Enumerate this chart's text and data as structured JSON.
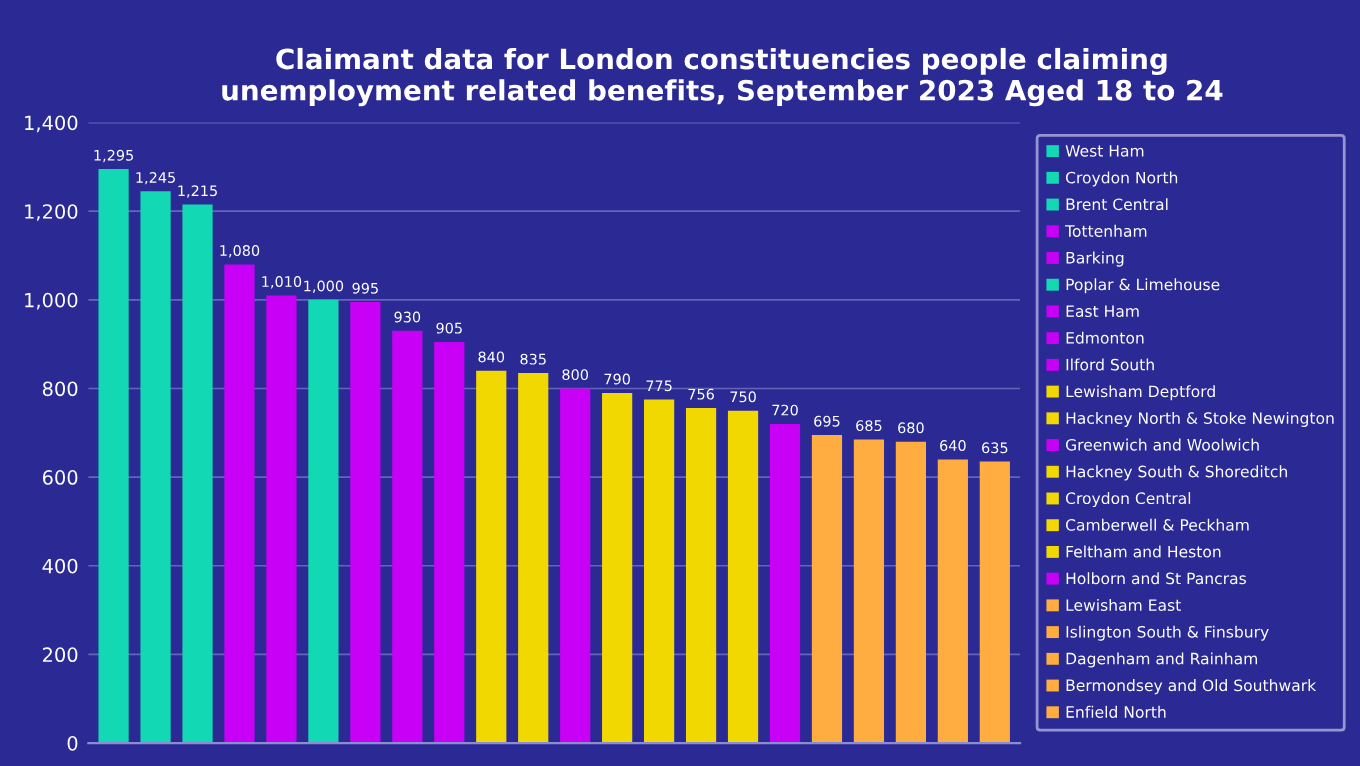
{
  "chart_data": {
    "type": "bar",
    "title": "Claimant data for London constituencies people claiming\nunemployment related benefits, September 2023 Aged 18 to 24",
    "categories": [
      null,
      null,
      null,
      null,
      null,
      null,
      null,
      null,
      null,
      null,
      null,
      null,
      null,
      null,
      null,
      null,
      null,
      null,
      null,
      null,
      null,
      null
    ],
    "series": [
      {
        "name": "West Ham",
        "color": "#12d9b4",
        "values": [
          1295,
          null,
          null,
          null,
          null,
          null,
          null,
          null,
          null,
          null,
          null,
          null,
          null,
          null,
          null,
          null,
          null,
          null,
          null,
          null,
          null,
          null
        ],
        "value_labels": [
          "1,295",
          null,
          null,
          null,
          null,
          null,
          null,
          null,
          null,
          null,
          null,
          null,
          null,
          null,
          null,
          null,
          null,
          null,
          null,
          null,
          null,
          null
        ]
      },
      {
        "name": "Croydon North",
        "color": "#12d9b4",
        "values": [
          null,
          1245,
          null,
          null,
          null,
          null,
          null,
          null,
          null,
          null,
          null,
          null,
          null,
          null,
          null,
          null,
          null,
          null,
          null,
          null,
          null,
          null
        ],
        "value_labels": [
          null,
          "1,245",
          null,
          null,
          null,
          null,
          null,
          null,
          null,
          null,
          null,
          null,
          null,
          null,
          null,
          null,
          null,
          null,
          null,
          null,
          null,
          null
        ]
      },
      {
        "name": "Brent Central",
        "color": "#12d9b4",
        "values": [
          null,
          null,
          1215,
          null,
          null,
          null,
          null,
          null,
          null,
          null,
          null,
          null,
          null,
          null,
          null,
          null,
          null,
          null,
          null,
          null,
          null,
          null
        ],
        "value_labels": [
          null,
          null,
          "1,215",
          null,
          null,
          null,
          null,
          null,
          null,
          null,
          null,
          null,
          null,
          null,
          null,
          null,
          null,
          null,
          null,
          null,
          null,
          null
        ]
      },
      {
        "name": "Tottenham",
        "color": "#c800f5",
        "values": [
          null,
          null,
          null,
          1080,
          null,
          null,
          null,
          null,
          null,
          null,
          null,
          null,
          null,
          null,
          null,
          null,
          null,
          null,
          null,
          null,
          null,
          null
        ],
        "value_labels": [
          null,
          null,
          null,
          "1,080",
          null,
          null,
          null,
          null,
          null,
          null,
          null,
          null,
          null,
          null,
          null,
          null,
          null,
          null,
          null,
          null,
          null,
          null
        ]
      },
      {
        "name": "Barking",
        "color": "#c800f5",
        "values": [
          null,
          null,
          null,
          null,
          1010,
          null,
          null,
          null,
          null,
          null,
          null,
          null,
          null,
          null,
          null,
          null,
          null,
          null,
          null,
          null,
          null,
          null
        ],
        "value_labels": [
          null,
          null,
          null,
          null,
          "1,010",
          null,
          null,
          null,
          null,
          null,
          null,
          null,
          null,
          null,
          null,
          null,
          null,
          null,
          null,
          null,
          null,
          null
        ]
      },
      {
        "name": "Poplar & Limehouse",
        "color": "#12d9b4",
        "values": [
          null,
          null,
          null,
          null,
          null,
          1000,
          null,
          null,
          null,
          null,
          null,
          null,
          null,
          null,
          null,
          null,
          null,
          null,
          null,
          null,
          null,
          null
        ],
        "value_labels": [
          null,
          null,
          null,
          null,
          null,
          "1,000",
          null,
          null,
          null,
          null,
          null,
          null,
          null,
          null,
          null,
          null,
          null,
          null,
          null,
          null,
          null,
          null
        ]
      },
      {
        "name": "East Ham",
        "color": "#c800f5",
        "values": [
          null,
          null,
          null,
          null,
          null,
          null,
          995,
          null,
          null,
          null,
          null,
          null,
          null,
          null,
          null,
          null,
          null,
          null,
          null,
          null,
          null,
          null
        ],
        "value_labels": [
          null,
          null,
          null,
          null,
          null,
          null,
          "995",
          null,
          null,
          null,
          null,
          null,
          null,
          null,
          null,
          null,
          null,
          null,
          null,
          null,
          null,
          null
        ]
      },
      {
        "name": "Edmonton",
        "color": "#c800f5",
        "values": [
          null,
          null,
          null,
          null,
          null,
          null,
          null,
          930,
          null,
          null,
          null,
          null,
          null,
          null,
          null,
          null,
          null,
          null,
          null,
          null,
          null,
          null
        ],
        "value_labels": [
          null,
          null,
          null,
          null,
          null,
          null,
          null,
          "930",
          null,
          null,
          null,
          null,
          null,
          null,
          null,
          null,
          null,
          null,
          null,
          null,
          null,
          null
        ]
      },
      {
        "name": "Ilford South",
        "color": "#c800f5",
        "values": [
          null,
          null,
          null,
          null,
          null,
          null,
          null,
          null,
          905,
          null,
          null,
          null,
          null,
          null,
          null,
          null,
          null,
          null,
          null,
          null,
          null,
          null
        ],
        "value_labels": [
          null,
          null,
          null,
          null,
          null,
          null,
          null,
          null,
          "905",
          null,
          null,
          null,
          null,
          null,
          null,
          null,
          null,
          null,
          null,
          null,
          null,
          null
        ]
      },
      {
        "name": "Lewisham Deptford",
        "color": "#f0d800",
        "values": [
          null,
          null,
          null,
          null,
          null,
          null,
          null,
          null,
          null,
          840,
          null,
          null,
          null,
          null,
          null,
          null,
          null,
          null,
          null,
          null,
          null,
          null
        ],
        "value_labels": [
          null,
          null,
          null,
          null,
          null,
          null,
          null,
          null,
          null,
          "840",
          null,
          null,
          null,
          null,
          null,
          null,
          null,
          null,
          null,
          null,
          null,
          null
        ]
      },
      {
        "name": "Hackney North & Stoke Newington",
        "color": "#f0d800",
        "values": [
          null,
          null,
          null,
          null,
          null,
          null,
          null,
          null,
          null,
          null,
          835,
          null,
          null,
          null,
          null,
          null,
          null,
          null,
          null,
          null,
          null,
          null
        ],
        "value_labels": [
          null,
          null,
          null,
          null,
          null,
          null,
          null,
          null,
          null,
          null,
          "835",
          null,
          null,
          null,
          null,
          null,
          null,
          null,
          null,
          null,
          null,
          null
        ]
      },
      {
        "name": "Greenwich and Woolwich",
        "color": "#c800f5",
        "values": [
          null,
          null,
          null,
          null,
          null,
          null,
          null,
          null,
          null,
          null,
          null,
          800,
          null,
          null,
          null,
          null,
          null,
          null,
          null,
          null,
          null,
          null
        ],
        "value_labels": [
          null,
          null,
          null,
          null,
          null,
          null,
          null,
          null,
          null,
          null,
          null,
          "800",
          null,
          null,
          null,
          null,
          null,
          null,
          null,
          null,
          null,
          null
        ]
      },
      {
        "name": "Hackney South & Shoreditch",
        "color": "#f0d800",
        "values": [
          null,
          null,
          null,
          null,
          null,
          null,
          null,
          null,
          null,
          null,
          null,
          null,
          790,
          null,
          null,
          null,
          null,
          null,
          null,
          null,
          null,
          null
        ],
        "value_labels": [
          null,
          null,
          null,
          null,
          null,
          null,
          null,
          null,
          null,
          null,
          null,
          null,
          "790",
          null,
          null,
          null,
          null,
          null,
          null,
          null,
          null,
          null
        ]
      },
      {
        "name": "Croydon Central",
        "color": "#f0d800",
        "values": [
          null,
          null,
          null,
          null,
          null,
          null,
          null,
          null,
          null,
          null,
          null,
          null,
          null,
          775,
          null,
          null,
          null,
          null,
          null,
          null,
          null,
          null
        ],
        "value_labels": [
          null,
          null,
          null,
          null,
          null,
          null,
          null,
          null,
          null,
          null,
          null,
          null,
          null,
          "775",
          null,
          null,
          null,
          null,
          null,
          null,
          null,
          null
        ]
      },
      {
        "name": "Camberwell & Peckham",
        "color": "#f0d800",
        "values": [
          null,
          null,
          null,
          null,
          null,
          null,
          null,
          null,
          null,
          null,
          null,
          null,
          null,
          null,
          756,
          null,
          null,
          null,
          null,
          null,
          null,
          null
        ],
        "value_labels": [
          null,
          null,
          null,
          null,
          null,
          null,
          null,
          null,
          null,
          null,
          null,
          null,
          null,
          null,
          "756",
          null,
          null,
          null,
          null,
          null,
          null,
          null
        ]
      },
      {
        "name": "Feltham and Heston",
        "color": "#f0d800",
        "values": [
          null,
          null,
          null,
          null,
          null,
          null,
          null,
          null,
          null,
          null,
          null,
          null,
          null,
          null,
          null,
          750,
          null,
          null,
          null,
          null,
          null,
          null
        ],
        "value_labels": [
          null,
          null,
          null,
          null,
          null,
          null,
          null,
          null,
          null,
          null,
          null,
          null,
          null,
          null,
          null,
          "750",
          null,
          null,
          null,
          null,
          null,
          null
        ]
      },
      {
        "name": "Holborn and St Pancras",
        "color": "#c800f5",
        "values": [
          null,
          null,
          null,
          null,
          null,
          null,
          null,
          null,
          null,
          null,
          null,
          null,
          null,
          null,
          null,
          null,
          720,
          null,
          null,
          null,
          null,
          null
        ],
        "value_labels": [
          null,
          null,
          null,
          null,
          null,
          null,
          null,
          null,
          null,
          null,
          null,
          null,
          null,
          null,
          null,
          null,
          "720",
          null,
          null,
          null,
          null,
          null
        ]
      },
      {
        "name": "Lewisham East",
        "color": "#ffad40",
        "values": [
          null,
          null,
          null,
          null,
          null,
          null,
          null,
          null,
          null,
          null,
          null,
          null,
          null,
          null,
          null,
          null,
          null,
          695,
          null,
          null,
          null,
          null
        ],
        "value_labels": [
          null,
          null,
          null,
          null,
          null,
          null,
          null,
          null,
          null,
          null,
          null,
          null,
          null,
          null,
          null,
          null,
          null,
          "695",
          null,
          null,
          null,
          null
        ]
      },
      {
        "name": "Islington South & Finsbury",
        "color": "#ffad40",
        "values": [
          null,
          null,
          null,
          null,
          null,
          null,
          null,
          null,
          null,
          null,
          null,
          null,
          null,
          null,
          null,
          null,
          null,
          null,
          685,
          null,
          null,
          null
        ],
        "value_labels": [
          null,
          null,
          null,
          null,
          null,
          null,
          null,
          null,
          null,
          null,
          null,
          null,
          null,
          null,
          null,
          null,
          null,
          null,
          "685",
          null,
          null,
          null
        ]
      },
      {
        "name": "Dagenham and Rainham",
        "color": "#ffad40",
        "values": [
          null,
          null,
          null,
          null,
          null,
          null,
          null,
          null,
          null,
          null,
          null,
          null,
          null,
          null,
          null,
          null,
          null,
          null,
          null,
          680,
          null,
          null
        ],
        "value_labels": [
          null,
          null,
          null,
          null,
          null,
          null,
          null,
          null,
          null,
          null,
          null,
          null,
          null,
          null,
          null,
          null,
          null,
          null,
          null,
          "680",
          null,
          null
        ]
      },
      {
        "name": "Bermondsey and Old Southwark",
        "color": "#ffad40",
        "values": [
          null,
          null,
          null,
          null,
          null,
          null,
          null,
          null,
          null,
          null,
          null,
          null,
          null,
          null,
          null,
          null,
          null,
          null,
          null,
          null,
          640,
          null
        ],
        "value_labels": [
          null,
          null,
          null,
          null,
          null,
          null,
          null,
          null,
          null,
          null,
          null,
          null,
          null,
          null,
          null,
          null,
          null,
          null,
          null,
          null,
          "640",
          null
        ]
      },
      {
        "name": "Enfield North",
        "color": "#ffad40",
        "values": [
          null,
          null,
          null,
          null,
          null,
          null,
          null,
          null,
          null,
          null,
          null,
          null,
          null,
          null,
          null,
          null,
          null,
          null,
          null,
          null,
          null,
          635
        ],
        "value_labels": [
          null,
          null,
          null,
          null,
          null,
          null,
          null,
          null,
          null,
          null,
          null,
          null,
          null,
          null,
          null,
          null,
          null,
          null,
          null,
          null,
          null,
          "635"
        ]
      }
    ],
    "ylim": [
      0,
      1400
    ],
    "yticks": [
      0,
      200,
      400,
      600,
      800,
      {
        "value": 1000,
        "label": "1,000"
      },
      {
        "value": 1200,
        "label": "1,200"
      },
      {
        "value": 1400,
        "label": "1,400"
      }
    ],
    "grid": "y",
    "legend": "right",
    "tick_labels": "y"
  }
}
